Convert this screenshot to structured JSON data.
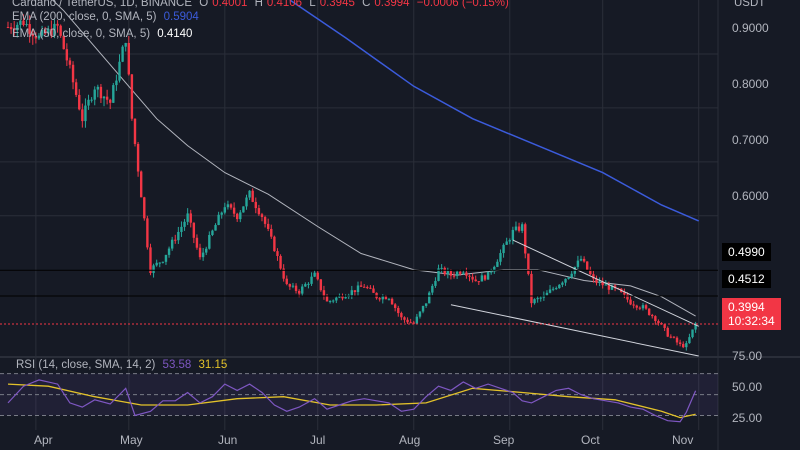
{
  "header": {
    "symbol": "Cardano / TetherUS, 1D, BINANCE",
    "open_label": "O",
    "open": "0.4001",
    "high_label": "H",
    "high": "0.4106",
    "low_label": "L",
    "low": "0.3945",
    "close_label": "C",
    "close": "0.3994",
    "change": "−0.0006 (−0.15%)",
    "currency": "USDT"
  },
  "indicators": {
    "ema200": {
      "label": "EMA (200, close, 0, SMA, 5)",
      "value": "0.5904",
      "color": "#3b5bdb"
    },
    "ema50": {
      "label": "EMA (50, close, 0, SMA, 5)",
      "value": "0.4140",
      "color": "#d1d4dc"
    },
    "rsi": {
      "label": "RSI (14, close, SMA, 14, 2)",
      "value1": "53.58",
      "value2": "31.15",
      "rsi_color": "#7e57c2",
      "sma_color": "#e3c22a"
    }
  },
  "price_axis": {
    "ticks": [
      "0.9000",
      "0.8000",
      "0.7000",
      "0.6000"
    ]
  },
  "price_tags": {
    "level1": "0.4990",
    "level2": "0.4512",
    "last": "0.3994",
    "countdown": "10:32:34"
  },
  "rsi_axis": {
    "ticks": [
      "75.00",
      "50.00",
      "25.00"
    ]
  },
  "x_axis": {
    "ticks": [
      "Apr",
      "May",
      "Jun",
      "Jul",
      "Aug",
      "Sep",
      "Oct",
      "Nov"
    ]
  },
  "colors": {
    "up": "#26a69a",
    "down": "#f23645",
    "background": "#161a25",
    "grid": "#2a2e39"
  },
  "chart_data": {
    "type": "candlestick",
    "title": "Cardano / TetherUS, 1D, BINANCE",
    "price_range": [
      0.34,
      1.0
    ],
    "levels": [
      0.499,
      0.4512
    ],
    "last_price": 0.3994,
    "x_range": [
      "2024-03-23",
      "2024-11-04"
    ],
    "price_anchors": [
      [
        "2024-03-23",
        0.95
      ],
      [
        "2024-03-28",
        0.96
      ],
      [
        "2024-04-02",
        0.93
      ],
      [
        "2024-04-08",
        0.95
      ],
      [
        "2024-04-12",
        0.87
      ],
      [
        "2024-04-16",
        0.78
      ],
      [
        "2024-04-20",
        0.84
      ],
      [
        "2024-04-25",
        0.81
      ],
      [
        "2024-04-30",
        0.93
      ],
      [
        "2024-05-02",
        0.78
      ],
      [
        "2024-05-05",
        0.64
      ],
      [
        "2024-05-08",
        0.5
      ],
      [
        "2024-05-12",
        0.52
      ],
      [
        "2024-05-16",
        0.56
      ],
      [
        "2024-05-20",
        0.6
      ],
      [
        "2024-05-24",
        0.52
      ],
      [
        "2024-05-28",
        0.57
      ],
      [
        "2024-06-01",
        0.62
      ],
      [
        "2024-06-05",
        0.6
      ],
      [
        "2024-06-09",
        0.64
      ],
      [
        "2024-06-13",
        0.6
      ],
      [
        "2024-06-17",
        0.54
      ],
      [
        "2024-06-21",
        0.47
      ],
      [
        "2024-06-25",
        0.46
      ],
      [
        "2024-06-30",
        0.49
      ],
      [
        "2024-07-04",
        0.44
      ],
      [
        "2024-07-08",
        0.45
      ],
      [
        "2024-07-12",
        0.46
      ],
      [
        "2024-07-16",
        0.47
      ],
      [
        "2024-07-20",
        0.45
      ],
      [
        "2024-07-24",
        0.45
      ],
      [
        "2024-07-28",
        0.41
      ],
      [
        "2024-08-01",
        0.4
      ],
      [
        "2024-08-05",
        0.44
      ],
      [
        "2024-08-09",
        0.5
      ],
      [
        "2024-08-13",
        0.49
      ],
      [
        "2024-08-17",
        0.5
      ],
      [
        "2024-08-21",
        0.48
      ],
      [
        "2024-08-25",
        0.49
      ],
      [
        "2024-08-29",
        0.53
      ],
      [
        "2024-09-02",
        0.57
      ],
      [
        "2024-09-05",
        0.58
      ],
      [
        "2024-09-08",
        0.44
      ],
      [
        "2024-09-12",
        0.45
      ],
      [
        "2024-09-16",
        0.47
      ],
      [
        "2024-09-20",
        0.49
      ],
      [
        "2024-09-24",
        0.52
      ],
      [
        "2024-09-28",
        0.48
      ],
      [
        "2024-10-02",
        0.47
      ],
      [
        "2024-10-06",
        0.46
      ],
      [
        "2024-10-10",
        0.44
      ],
      [
        "2024-10-14",
        0.43
      ],
      [
        "2024-10-18",
        0.41
      ],
      [
        "2024-10-22",
        0.38
      ],
      [
        "2024-10-26",
        0.36
      ],
      [
        "2024-10-28",
        0.36
      ],
      [
        "2024-10-31",
        0.4
      ]
    ],
    "ema50": [
      [
        "2024-03-23",
        1.08
      ],
      [
        "2024-04-10",
        0.98
      ],
      [
        "2024-04-25",
        0.88
      ],
      [
        "2024-05-10",
        0.78
      ],
      [
        "2024-05-20",
        0.73
      ],
      [
        "2024-06-01",
        0.68
      ],
      [
        "2024-06-15",
        0.64
      ],
      [
        "2024-07-01",
        0.58
      ],
      [
        "2024-07-15",
        0.53
      ],
      [
        "2024-08-01",
        0.5
      ],
      [
        "2024-08-15",
        0.49
      ],
      [
        "2024-08-30",
        0.5
      ],
      [
        "2024-09-10",
        0.5
      ],
      [
        "2024-09-25",
        0.48
      ],
      [
        "2024-10-10",
        0.47
      ],
      [
        "2024-10-20",
        0.45
      ],
      [
        "2024-10-31",
        0.414
      ]
    ],
    "ema200": [
      [
        "2024-06-22",
        1.0
      ],
      [
        "2024-07-10",
        0.93
      ],
      [
        "2024-08-01",
        0.84
      ],
      [
        "2024-08-20",
        0.78
      ],
      [
        "2024-09-10",
        0.73
      ],
      [
        "2024-10-01",
        0.68
      ],
      [
        "2024-10-20",
        0.62
      ],
      [
        "2024-11-01",
        0.5904
      ]
    ],
    "trendlines": [
      {
        "from": [
          "2024-09-02",
          0.555
        ],
        "to": [
          "2024-11-01",
          0.395
        ]
      },
      {
        "from": [
          "2024-08-13",
          0.435
        ],
        "to": [
          "2024-11-01",
          0.34
        ]
      }
    ],
    "rsi_range": [
      18,
      85
    ],
    "rsi_lines": [
      70,
      50,
      30
    ],
    "rsi": [
      [
        "2024-03-23",
        42
      ],
      [
        "2024-03-28",
        58
      ],
      [
        "2024-04-02",
        64
      ],
      [
        "2024-04-08",
        60
      ],
      [
        "2024-04-12",
        42
      ],
      [
        "2024-04-16",
        38
      ],
      [
        "2024-04-20",
        45
      ],
      [
        "2024-04-25",
        41
      ],
      [
        "2024-04-30",
        56
      ],
      [
        "2024-05-03",
        30
      ],
      [
        "2024-05-08",
        34
      ],
      [
        "2024-05-12",
        44
      ],
      [
        "2024-05-16",
        44
      ],
      [
        "2024-05-20",
        52
      ],
      [
        "2024-05-24",
        42
      ],
      [
        "2024-05-28",
        48
      ],
      [
        "2024-06-01",
        60
      ],
      [
        "2024-06-05",
        54
      ],
      [
        "2024-06-09",
        60
      ],
      [
        "2024-06-13",
        52
      ],
      [
        "2024-06-17",
        40
      ],
      [
        "2024-06-21",
        34
      ],
      [
        "2024-06-25",
        38
      ],
      [
        "2024-06-30",
        46
      ],
      [
        "2024-07-04",
        36
      ],
      [
        "2024-07-08",
        40
      ],
      [
        "2024-07-12",
        44
      ],
      [
        "2024-07-16",
        46
      ],
      [
        "2024-07-20",
        44
      ],
      [
        "2024-07-24",
        42
      ],
      [
        "2024-07-28",
        34
      ],
      [
        "2024-08-01",
        36
      ],
      [
        "2024-08-05",
        48
      ],
      [
        "2024-08-09",
        58
      ],
      [
        "2024-08-13",
        54
      ],
      [
        "2024-08-17",
        62
      ],
      [
        "2024-08-21",
        56
      ],
      [
        "2024-08-25",
        60
      ],
      [
        "2024-08-29",
        56
      ],
      [
        "2024-09-02",
        52
      ],
      [
        "2024-09-05",
        44
      ],
      [
        "2024-09-08",
        42
      ],
      [
        "2024-09-12",
        48
      ],
      [
        "2024-09-16",
        54
      ],
      [
        "2024-09-20",
        56
      ],
      [
        "2024-09-24",
        50
      ],
      [
        "2024-09-28",
        46
      ],
      [
        "2024-10-02",
        44
      ],
      [
        "2024-10-06",
        42
      ],
      [
        "2024-10-10",
        38
      ],
      [
        "2024-10-14",
        36
      ],
      [
        "2024-10-18",
        30
      ],
      [
        "2024-10-22",
        25
      ],
      [
        "2024-10-26",
        24
      ],
      [
        "2024-10-28",
        33
      ],
      [
        "2024-10-31",
        53.58
      ]
    ],
    "rsi_sma": [
      [
        "2024-03-23",
        60
      ],
      [
        "2024-04-05",
        58
      ],
      [
        "2024-04-20",
        48
      ],
      [
        "2024-05-05",
        40
      ],
      [
        "2024-05-20",
        40
      ],
      [
        "2024-06-05",
        46
      ],
      [
        "2024-06-20",
        48
      ],
      [
        "2024-07-05",
        40
      ],
      [
        "2024-07-20",
        40
      ],
      [
        "2024-08-05",
        42
      ],
      [
        "2024-08-20",
        56
      ],
      [
        "2024-09-05",
        52
      ],
      [
        "2024-09-20",
        48
      ],
      [
        "2024-10-05",
        45
      ],
      [
        "2024-10-20",
        34
      ],
      [
        "2024-10-26",
        28
      ],
      [
        "2024-10-31",
        31.15
      ]
    ]
  }
}
